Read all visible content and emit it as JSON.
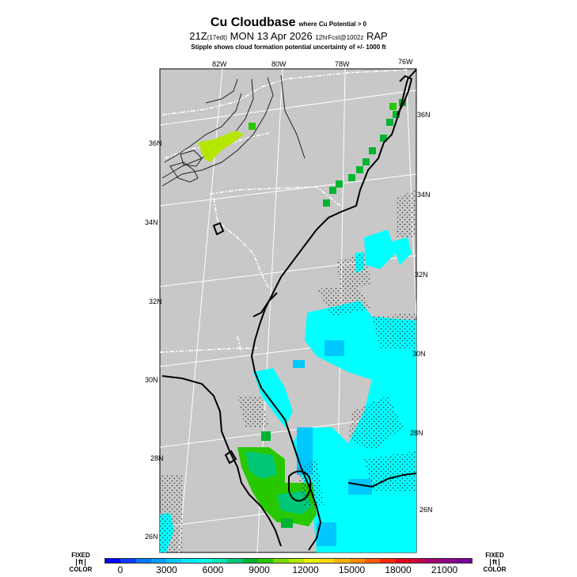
{
  "header": {
    "title": "Cu Cloudbase",
    "qualifier": "where Cu Potential > 0",
    "valid_time": "21Z",
    "local_time": "(17edt)",
    "date": "MON 13 Apr 2026",
    "forecast": "12hrFcst@1002z",
    "model": "RAP",
    "stipple_note": "Stipple shows cloud formation potential uncertainty of +/- 1000 ft"
  },
  "map": {
    "longitude_labels": [
      "82W",
      "80W",
      "78W",
      "76W"
    ],
    "latitude_labels_left": [
      "36N",
      "34N",
      "32N",
      "30N",
      "28N",
      "26N"
    ],
    "latitude_labels_right": [
      "36N",
      "34N",
      "32N",
      "30N",
      "28N",
      "26N"
    ],
    "background_color": "#c8c8c8",
    "coast_color": "#000000",
    "border_color": "#ffffff",
    "grid_color": "#ffffff"
  },
  "legend": {
    "left_label_top": "FIXED",
    "left_label_unit": "ft",
    "left_label_bottom": "COLOR",
    "right_label_top": "FIXED",
    "right_label_unit": "ft",
    "right_label_bottom": "COLOR",
    "tick_labels": [
      "0",
      "3000",
      "6000",
      "9000",
      "12000",
      "15000",
      "18000",
      "21000"
    ],
    "colors": [
      "#0000ff",
      "#0a3cff",
      "#0078ff",
      "#00a0ff",
      "#00c8ff",
      "#00e6ff",
      "#00ffe6",
      "#00e6b4",
      "#00c878",
      "#00b432",
      "#28c800",
      "#78dc00",
      "#b4e600",
      "#e6f000",
      "#ffdc00",
      "#ffb400",
      "#ff8c00",
      "#ff5a00",
      "#ff2800",
      "#e6001e",
      "#c80046",
      "#a0006e",
      "#8c008c",
      "#780096"
    ]
  }
}
